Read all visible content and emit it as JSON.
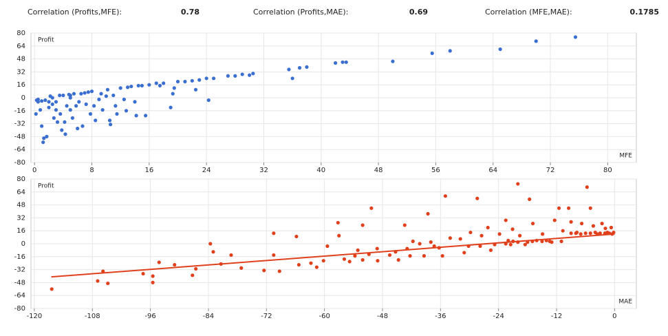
{
  "header": {
    "stats": [
      {
        "label": "Correlation (Profits,MFE):",
        "value": 0.78
      },
      {
        "label": "Correlation (Profits,MAE):",
        "value": 0.69
      },
      {
        "label": "Correlation (MFE,MAE):",
        "value": 0.1785
      }
    ]
  },
  "chart_data": [
    {
      "type": "scatter",
      "y_label": "Profit",
      "x_label": "MFE",
      "color": "#3a6fd0",
      "x": [
        0.2,
        0.3,
        0.5,
        0.5,
        0.8,
        1,
        1,
        1.2,
        1.3,
        1.5,
        1.7,
        2,
        2,
        2.2,
        2.5,
        2.5,
        2.7,
        3,
        3,
        3.2,
        3.5,
        3.6,
        3.8,
        4,
        4.2,
        4.3,
        4.5,
        4.8,
        5,
        5,
        5,
        5.3,
        5.5,
        5.8,
        6,
        6.2,
        6.5,
        6.7,
        7,
        7.2,
        7.5,
        7.8,
        8,
        8.3,
        8.5,
        9,
        9.3,
        9.5,
        10,
        10.2,
        10.5,
        10.6,
        11,
        11.3,
        11.5,
        12,
        12.5,
        12.8,
        13,
        13.5,
        14,
        14.2,
        14.5,
        15,
        15.5,
        16,
        17,
        17.5,
        18,
        19,
        19.3,
        19.5,
        20,
        21,
        22,
        22.5,
        23,
        24,
        24.3,
        25,
        27,
        28,
        29,
        30,
        30.5,
        35.5,
        36,
        37,
        38,
        42,
        43,
        43.5,
        50,
        55.5,
        58,
        65,
        70,
        75.5
      ],
      "values": [
        -20,
        -3,
        -5,
        -2,
        -15,
        -35,
        -4,
        -55,
        -50,
        -3,
        -48,
        -12,
        -5,
        2,
        -8,
        0,
        -25,
        -15,
        -5,
        -30,
        3,
        -20,
        -40,
        3,
        -30,
        -45,
        -10,
        4,
        -15,
        3,
        0,
        -25,
        5,
        -10,
        -38,
        -5,
        5,
        -35,
        6,
        -8,
        7,
        -20,
        8,
        -10,
        -28,
        -2,
        5,
        -15,
        2,
        10,
        -28,
        -33,
        3,
        -10,
        -20,
        12,
        -2,
        -16,
        13,
        14,
        -5,
        -22,
        15,
        15,
        -22,
        16,
        18,
        15,
        18,
        -12,
        5,
        12,
        20,
        20,
        21,
        10,
        22,
        24,
        -3,
        24,
        27,
        27,
        29,
        28,
        30,
        35,
        24,
        37,
        38,
        43,
        44,
        44,
        45,
        55,
        58,
        60,
        70,
        75
      ],
      "xlim": [
        -0.5,
        84
      ],
      "ylim": [
        -80,
        80
      ],
      "xticks": [
        0,
        8,
        16,
        24,
        32,
        40,
        48,
        56,
        64,
        72,
        80
      ],
      "yticks": [
        -80,
        -64,
        -48,
        -32,
        -16,
        0,
        16,
        32,
        48,
        64,
        80
      ],
      "grid": true
    },
    {
      "type": "scatter",
      "y_label": "Profit",
      "x_label": "MAE",
      "color": "#e0401c",
      "x": [
        -116.4,
        -106.9,
        -105.8,
        -104.8,
        -97.5,
        -95.5,
        -95.5,
        -94.2,
        -91,
        -87.3,
        -86.6,
        -83.6,
        -83,
        -81.4,
        -79.3,
        -77.2,
        -72.5,
        -70.5,
        -70.5,
        -69.3,
        -65.8,
        -65.3,
        -62.8,
        -61.6,
        -60.2,
        -59.4,
        -57,
        -57.2,
        -55.9,
        -54.8,
        -53.7,
        -53.1,
        -52.1,
        -50.8,
        -52.1,
        -50.3,
        -49.1,
        -49,
        -46.5,
        -45.3,
        -44.7,
        -43.4,
        -42.9,
        -42.3,
        -41.7,
        -40.3,
        -39.4,
        -38.6,
        -38,
        -37.3,
        -36.3,
        -35.6,
        -35,
        -34,
        -31.9,
        -31.1,
        -30.2,
        -29.8,
        -28.4,
        -27.8,
        -27.5,
        -26.2,
        -25.6,
        -24.8,
        -23.8,
        -22.5,
        -21.1,
        -20,
        -19.6,
        -18.5,
        -17.6,
        -16.9,
        -16.1,
        -14.9,
        -14.1,
        -13.4,
        -12.4,
        -11.5,
        -10.7,
        -9.5,
        -9,
        -7.8,
        -6.8,
        -5.7,
        -5,
        -4.4,
        -3.6,
        -2.6,
        -1.9,
        -1.1,
        -0.7,
        -0.2,
        -22,
        -21,
        -20,
        -18,
        -17,
        -15,
        -13,
        -11,
        -9,
        -8,
        -7,
        -6,
        -5,
        -4,
        -3,
        -2,
        -1.5,
        -0.5,
        -22.5,
        -21.5
      ],
      "values": [
        -56,
        -46,
        -34,
        -49,
        -37,
        -40,
        -48,
        -23,
        -26,
        -39,
        -31,
        0,
        -10,
        -25,
        -14,
        -30,
        -33,
        13,
        -14,
        -34,
        9,
        -26,
        -24,
        -29,
        -21,
        -3,
        10,
        26,
        -19,
        -22,
        -15,
        -8,
        -20,
        -13,
        23,
        44,
        -6,
        -21,
        -14,
        -10,
        -20,
        23,
        -6,
        -15,
        3,
        0,
        -15,
        37,
        2,
        -3,
        -5,
        -15,
        59,
        7,
        6,
        -11,
        -3,
        14,
        56,
        -3,
        10,
        20,
        -8,
        -1,
        12,
        29,
        18,
        74,
        10,
        -1,
        55,
        25,
        4,
        12,
        4,
        3,
        29,
        44,
        16,
        44,
        27,
        14,
        25,
        70,
        44,
        22,
        12,
        25,
        19,
        13,
        20,
        14,
        4,
        3,
        2,
        2,
        3,
        3,
        2,
        3,
        13,
        13,
        12,
        13,
        13,
        14,
        13,
        13,
        14,
        12,
        0,
        -1
      ],
      "trendline": {
        "x": [
          -116.5,
          0
        ],
        "values": [
          -41,
          12
        ]
      },
      "xlim": [
        -120.7,
        4.5
      ],
      "ylim": [
        -80,
        80
      ],
      "xticks": [
        -120,
        -108,
        -96,
        -84,
        -72,
        -60,
        -48,
        -36,
        -24,
        -12,
        0
      ],
      "yticks": [
        -80,
        -64,
        -48,
        -32,
        -16,
        0,
        16,
        32,
        48,
        64,
        80
      ],
      "grid": true
    }
  ]
}
